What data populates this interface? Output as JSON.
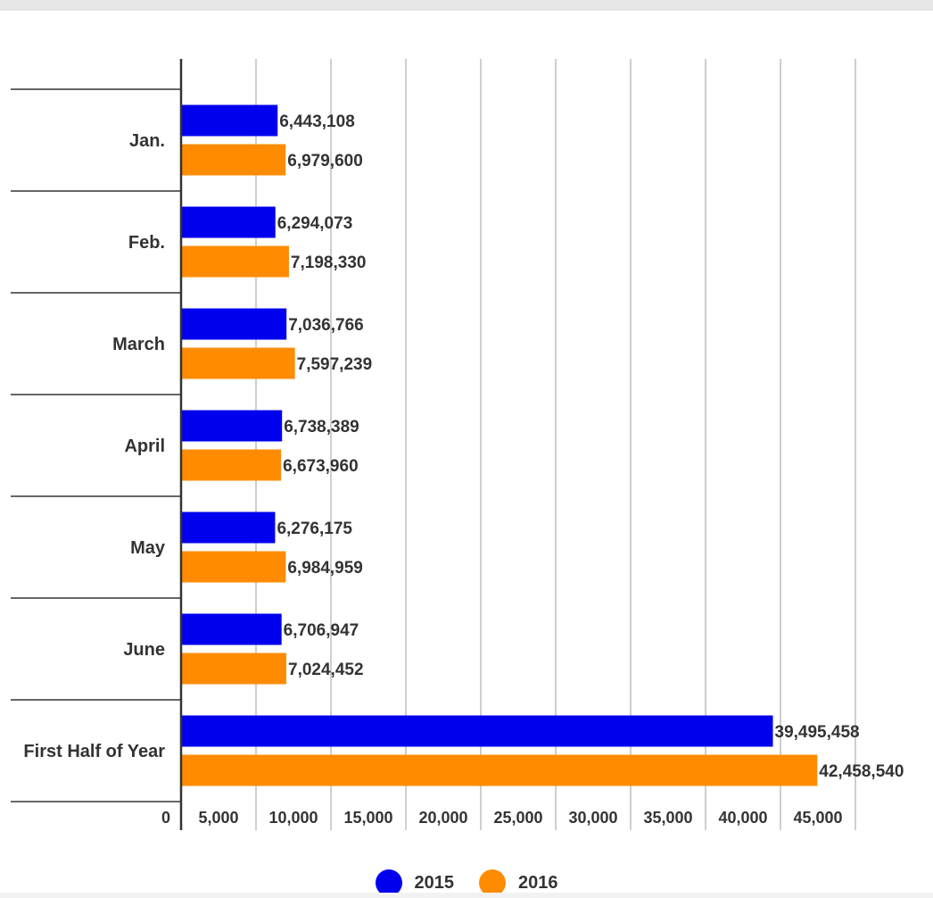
{
  "chart_data": {
    "type": "bar",
    "orientation": "horizontal",
    "categories": [
      "Jan.",
      "Feb.",
      "March",
      "April",
      "May",
      "June",
      "First Half of Year"
    ],
    "series": [
      {
        "name": "2015",
        "color": "#0000ee",
        "values": [
          6443108,
          6294073,
          7036766,
          6738389,
          6276175,
          6706947,
          39495458
        ],
        "labels": [
          "6,443,108",
          "6,294,073",
          "7,036,766",
          "6,738,389",
          "6,276,175",
          "6,706,947",
          "39,495,458"
        ]
      },
      {
        "name": "2016",
        "color": "#ff8c00",
        "values": [
          6979600,
          7198330,
          7597239,
          6673960,
          6984959,
          7024452,
          42458540
        ],
        "labels": [
          "6,979,600",
          "7,198,330",
          "7,597,239",
          "6,673,960",
          "6,984,959",
          "7,024,452",
          "42,458,540"
        ]
      }
    ],
    "x_ticks": [
      "0",
      "5,000",
      "10,000",
      "15,000",
      "20,000",
      "25,000",
      "30,000",
      "35,000",
      "40,000",
      "45,000"
    ],
    "xlim": [
      0,
      50000000
    ],
    "grid": true,
    "legend_position": "bottom"
  }
}
